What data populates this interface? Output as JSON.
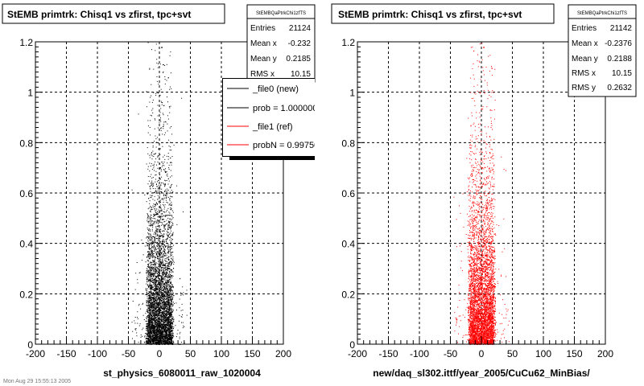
{
  "footer_text": "Mon Aug 29 15:55:13 2005",
  "chart_data": [
    {
      "type": "scatter",
      "title": "StEMB primtrk: Chisq1 vs zfirst, tpc+svt",
      "xlabel": "st_physics_6080011_raw_1020004",
      "xlim": [
        -200,
        200
      ],
      "ylim": [
        0,
        1.2
      ],
      "x_ticks": [
        "-200",
        "-150",
        "-100",
        "-50",
        "0",
        "50",
        "100",
        "150",
        "200"
      ],
      "y_ticks": [
        "0",
        "0.2",
        "0.4",
        "0.6",
        "0.8",
        "1",
        "1.2"
      ],
      "grid": true,
      "marker_color": "#000000",
      "series": [
        {
          "points": [
            [
              -10,
              0.02
            ],
            [
              0,
              0.05
            ],
            [
              10,
              0.1
            ],
            [
              -5,
              0.2
            ],
            [
              5,
              0.4
            ],
            [
              0,
              0.7
            ],
            [
              -3,
              1.0
            ],
            [
              3,
              1.18
            ]
          ]
        }
      ],
      "stats": {
        "name": "StEMBQaPtrkChi1zfTS",
        "rows": [
          {
            "label": "Entries",
            "value": "21124"
          },
          {
            "label": "Mean x",
            "value": "-0.232"
          },
          {
            "label": "Mean y",
            "value": "0.2185"
          },
          {
            "label": "RMS x",
            "value": "10.15"
          }
        ]
      },
      "legend": {
        "placement": "top-right",
        "entries": [
          {
            "label": "_file0 (new)",
            "color": "#000000"
          },
          {
            "label": "prob = 1.000000",
            "color": "#000000"
          },
          {
            "label": "_file1 (ref)",
            "color": "#ff0000"
          },
          {
            "label": "probN = 0.997500",
            "color": "#ff0000"
          }
        ]
      }
    },
    {
      "type": "scatter",
      "title": "StEMB primtrk: Chisq1 vs zfirst, tpc+svt",
      "xlabel": "new/daq_sl302.ittf/year_2005/CuCu62_MinBias/",
      "xlim": [
        -200,
        200
      ],
      "ylim": [
        0,
        1.2
      ],
      "x_ticks": [
        "-200",
        "-150",
        "-100",
        "-50",
        "0",
        "50",
        "100",
        "150",
        "200"
      ],
      "y_ticks": [
        "0",
        "0.2",
        "0.4",
        "0.6",
        "0.8",
        "1",
        "1.2"
      ],
      "grid": true,
      "marker_color": "#ff0000",
      "series": [
        {
          "points": [
            [
              -10,
              0.02
            ],
            [
              0,
              0.05
            ],
            [
              10,
              0.1
            ],
            [
              -5,
              0.2
            ],
            [
              5,
              0.4
            ],
            [
              0,
              0.7
            ],
            [
              -3,
              1.0
            ],
            [
              3,
              1.18
            ]
          ]
        }
      ],
      "stats": {
        "name": "StEMBQaPtrkChi1zfTS",
        "rows": [
          {
            "label": "Entries",
            "value": "21142"
          },
          {
            "label": "Mean x",
            "value": "-0.2376"
          },
          {
            "label": "Mean y",
            "value": "0.2188"
          },
          {
            "label": "RMS x",
            "value": "10.15"
          },
          {
            "label": "RMS y",
            "value": "0.2632"
          }
        ]
      }
    }
  ]
}
